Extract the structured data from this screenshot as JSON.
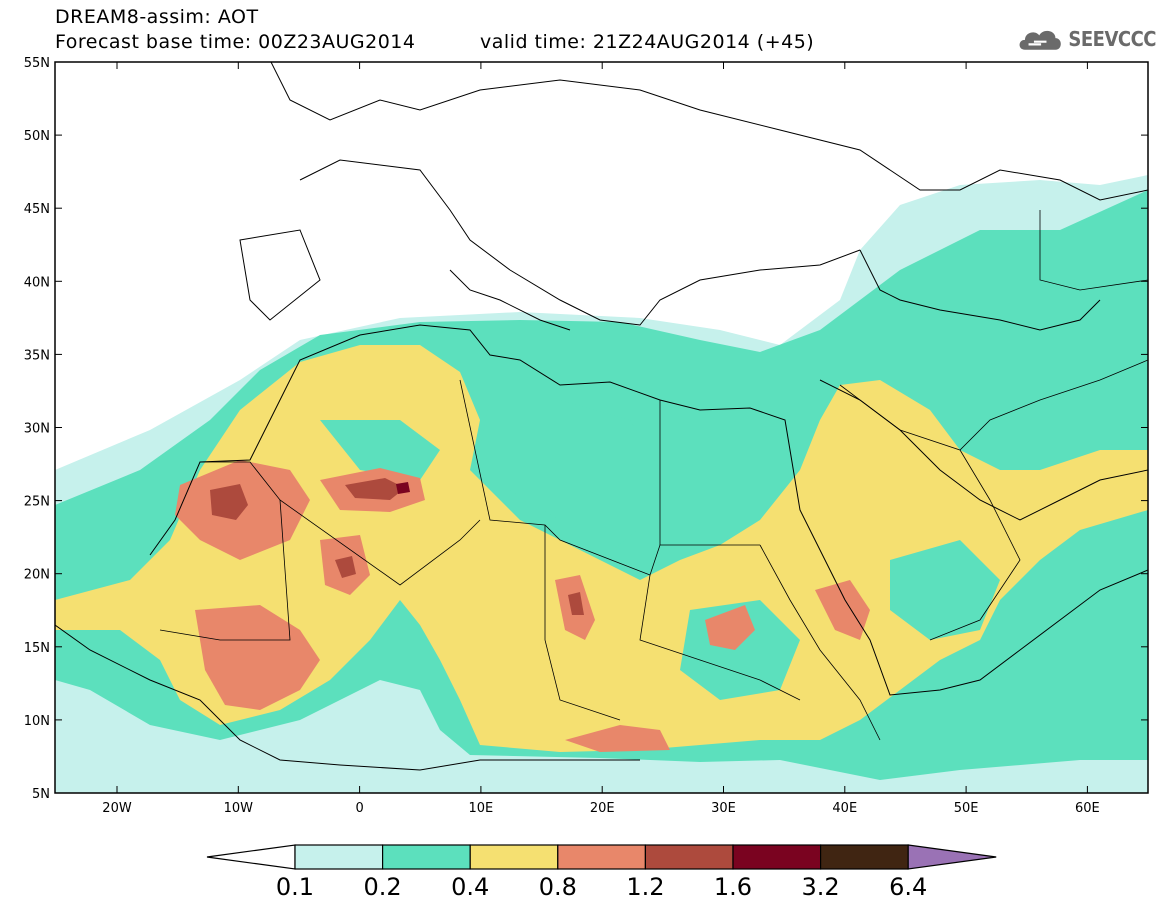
{
  "header": {
    "line1": "DREAM8-assim: AOT",
    "line2": "Forecast base time: 00Z23AUG2014",
    "valid": "valid time: 21Z24AUG2014 (+45)"
  },
  "logo": {
    "text": "SEEVCCC",
    "icon": "cloud-icon"
  },
  "axes": {
    "lat_labels": [
      "55N",
      "50N",
      "45N",
      "40N",
      "35N",
      "30N",
      "25N",
      "20N",
      "15N",
      "10N",
      "5N"
    ],
    "lon_labels": [
      "20W",
      "10W",
      "0",
      "10E",
      "20E",
      "30E",
      "40E",
      "50E",
      "60E"
    ]
  },
  "colorbar": {
    "labels": [
      "0.1",
      "0.2",
      "0.4",
      "0.8",
      "1.2",
      "1.6",
      "3.2",
      "6.4"
    ],
    "colors": [
      "#c6f1ec",
      "#5ce0bd",
      "#f5e071",
      "#e8876a",
      "#ad4a3d",
      "#7a0320",
      "#402512",
      "#9a72b5"
    ]
  },
  "map": {
    "land_bg": "#ffffff",
    "border_color": "#000000"
  }
}
